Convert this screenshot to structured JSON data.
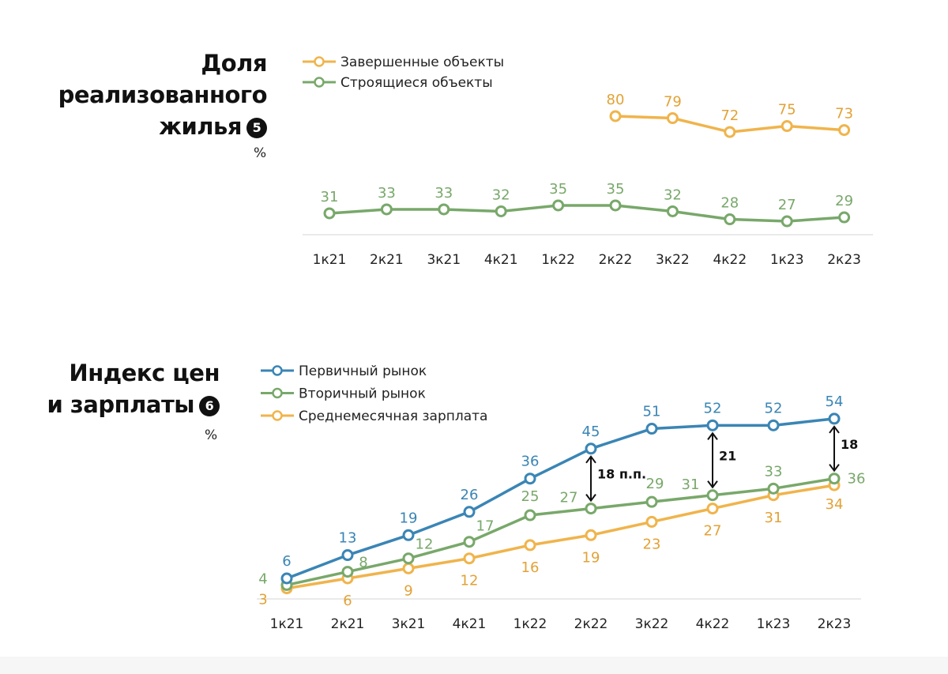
{
  "colors": {
    "completed": "#F0B44C",
    "under_construction": "#78A86A",
    "primary": "#3A85B5",
    "secondary": "#78A86A",
    "salary": "#F0B44C",
    "completed_label": "#E2A236",
    "salary_label": "#E2A236"
  },
  "chart_data": [
    {
      "type": "line",
      "title": "Доля реализованного жилья",
      "badge": "5",
      "unit": "%",
      "categories": [
        "1к21",
        "2к21",
        "3к21",
        "4к21",
        "1к22",
        "2к22",
        "3к22",
        "4к22",
        "1к23",
        "2к23"
      ],
      "series": [
        {
          "name": "Завершенные объекты",
          "values": [
            null,
            null,
            null,
            null,
            null,
            80,
            79,
            72,
            75,
            73
          ]
        },
        {
          "name": "Строящиеся объекты",
          "values": [
            31,
            33,
            33,
            32,
            35,
            35,
            32,
            28,
            27,
            29
          ]
        }
      ],
      "grid": false,
      "legend": "top-left"
    },
    {
      "type": "line",
      "title": "Индекс цен и зарплаты",
      "title_lines": [
        "Индекс цен",
        "и зарплаты"
      ],
      "badge": "6",
      "unit": "%",
      "categories": [
        "1к21",
        "2к21",
        "3к21",
        "4к21",
        "1к22",
        "2к22",
        "3к22",
        "4к22",
        "1к23",
        "2к23"
      ],
      "series": [
        {
          "name": "Первичный рынок",
          "values": [
            6,
            13,
            19,
            26,
            36,
            45,
            51,
            52,
            52,
            54
          ]
        },
        {
          "name": "Вторичный рынок",
          "values": [
            4,
            8,
            12,
            17,
            25,
            27,
            29,
            31,
            33,
            36
          ]
        },
        {
          "name": "Среднемесячная зарплата",
          "values": [
            3,
            6,
            9,
            12,
            16,
            19,
            23,
            27,
            31,
            34
          ]
        }
      ],
      "annotations": [
        {
          "category": "2к22",
          "from": 45,
          "to": 27,
          "label": "18 п.п."
        },
        {
          "category": "4к22",
          "from": 52,
          "to": 31,
          "label": "21"
        },
        {
          "category": "2к23",
          "from": 54,
          "to": 36,
          "label": "18"
        }
      ],
      "grid": false,
      "legend": "top-left"
    }
  ]
}
